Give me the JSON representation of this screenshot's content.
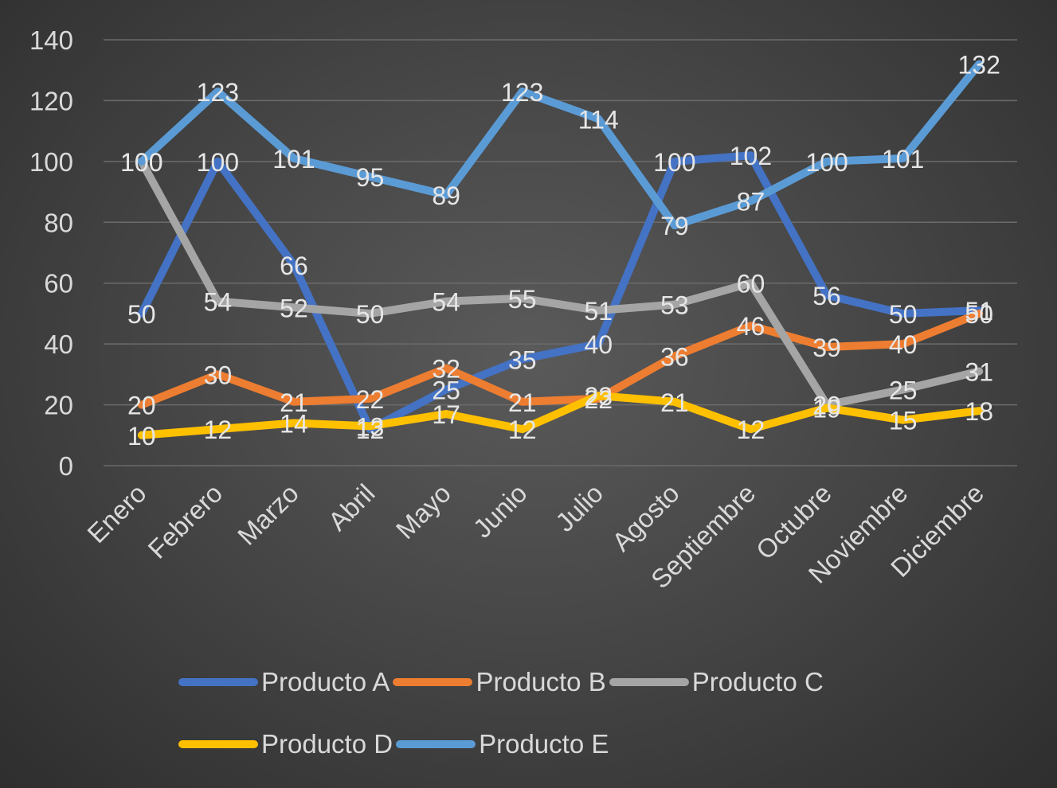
{
  "chart_data": {
    "type": "line",
    "title": "",
    "xlabel": "",
    "ylabel": "",
    "ylim": [
      0,
      140
    ],
    "ytick_step": 20,
    "yticks": [
      "0",
      "20",
      "40",
      "60",
      "80",
      "100",
      "120",
      "140"
    ],
    "grid": true,
    "legend_position": "bottom",
    "data_labels": true,
    "categories": [
      "Enero",
      "Febrero",
      "Marzo",
      "Abril",
      "Mayo",
      "Junio",
      "Julio",
      "Agosto",
      "Septiembre",
      "Octubre",
      "Noviembre",
      "Diciembre"
    ],
    "series": [
      {
        "name": "Producto A",
        "color": "#4472c4",
        "values": [
          50,
          100,
          66,
          12,
          25,
          35,
          40,
          100,
          102,
          56,
          50,
          51
        ]
      },
      {
        "name": "Producto B",
        "color": "#ed7d31",
        "values": [
          20,
          30,
          21,
          22,
          32,
          21,
          22,
          36,
          46,
          39,
          40,
          50
        ]
      },
      {
        "name": "Producto C",
        "color": "#a5a5a5",
        "values": [
          100,
          54,
          52,
          50,
          54,
          55,
          51,
          53,
          60,
          20,
          25,
          31
        ]
      },
      {
        "name": "Producto D",
        "color": "#ffc000",
        "values": [
          10,
          12,
          14,
          13,
          17,
          12,
          23,
          21,
          12,
          19,
          15,
          18
        ]
      },
      {
        "name": "Producto E",
        "color": "#5b9bd5",
        "values": [
          100,
          123,
          101,
          95,
          89,
          123,
          114,
          79,
          87,
          100,
          101,
          132
        ]
      }
    ]
  },
  "colors": {
    "gridline": "#6b6b6b",
    "axis_text": "#d9d9d9",
    "data_label_text": "#e6e6e6"
  }
}
